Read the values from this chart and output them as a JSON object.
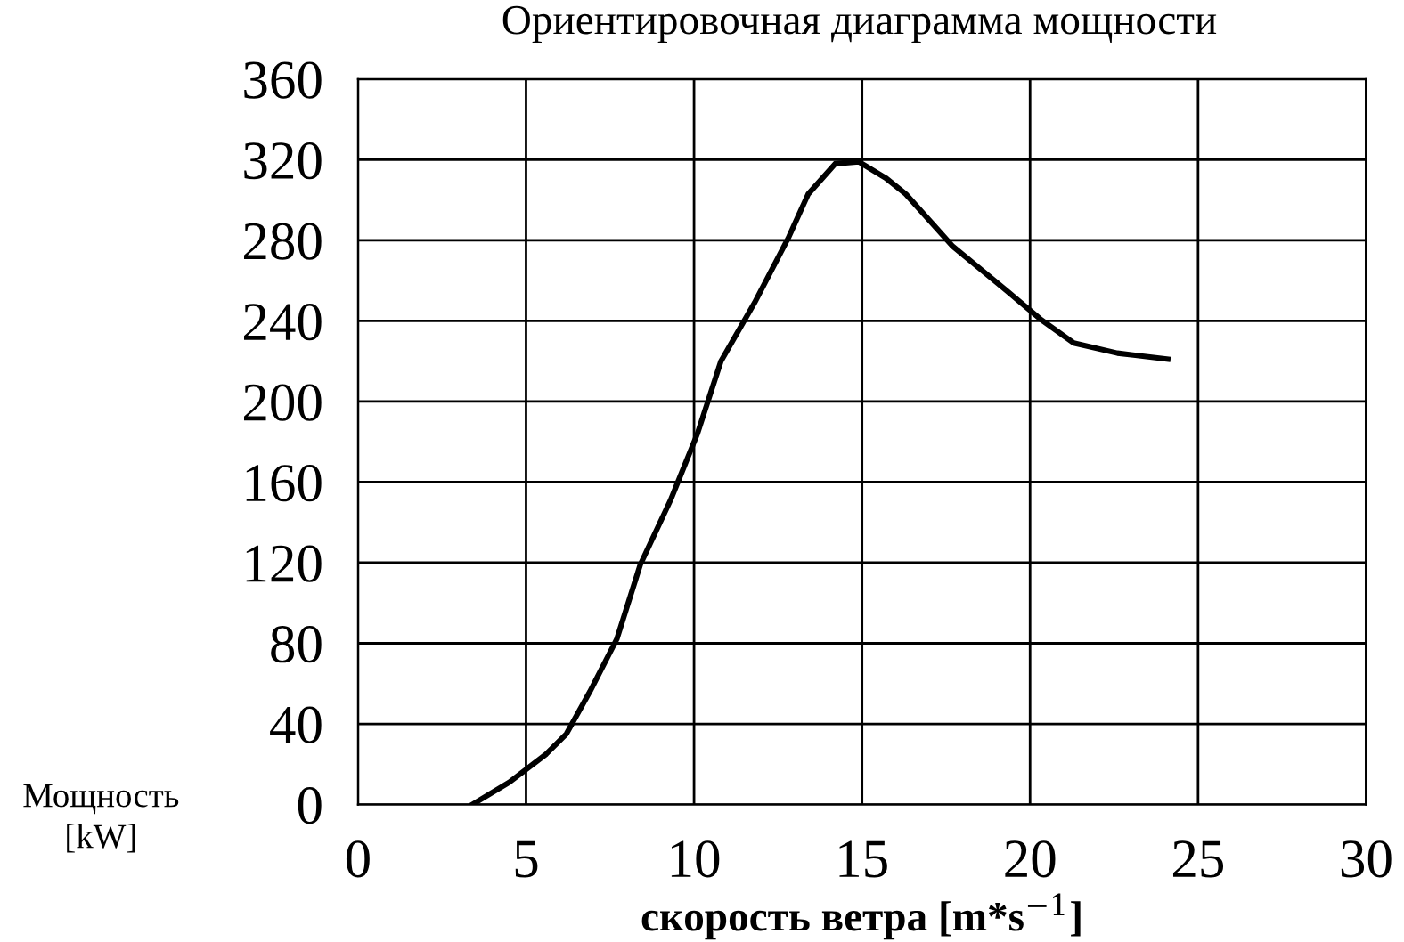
{
  "chart_data": {
    "type": "line",
    "title": "Ориентировочная диаграмма мощности",
    "xlabel": "скорость ветра [m*s$^{−1}$]",
    "ylabel": "Мощность\n[kW]",
    "series": [
      {
        "color": "#000000",
        "x": [
          3.4,
          4.5,
          5.6,
          6.2,
          6.9,
          7.7,
          8.4,
          9.3,
          10.1,
          10.8,
          11.8,
          12.8,
          13.4,
          14.2,
          14.9,
          15.7,
          16.3,
          17.7,
          19.3,
          20.3,
          21.3,
          22.6,
          24.1
        ],
        "values": [
          0,
          11,
          25,
          35,
          56,
          82,
          119,
          151,
          184,
          220,
          249,
          281,
          303,
          318,
          319,
          311,
          303,
          277,
          255,
          241,
          229,
          224,
          221
        ]
      }
    ],
    "xlim": [
      0,
      30
    ],
    "xticks": [
      0,
      5,
      10,
      15,
      20,
      25,
      30
    ],
    "ylim": [
      0,
      360
    ],
    "yticks": [
      0,
      40,
      80,
      120,
      160,
      200,
      240,
      280,
      320,
      360
    ],
    "grid": true,
    "marker": "none",
    "line_style": "solid"
  }
}
